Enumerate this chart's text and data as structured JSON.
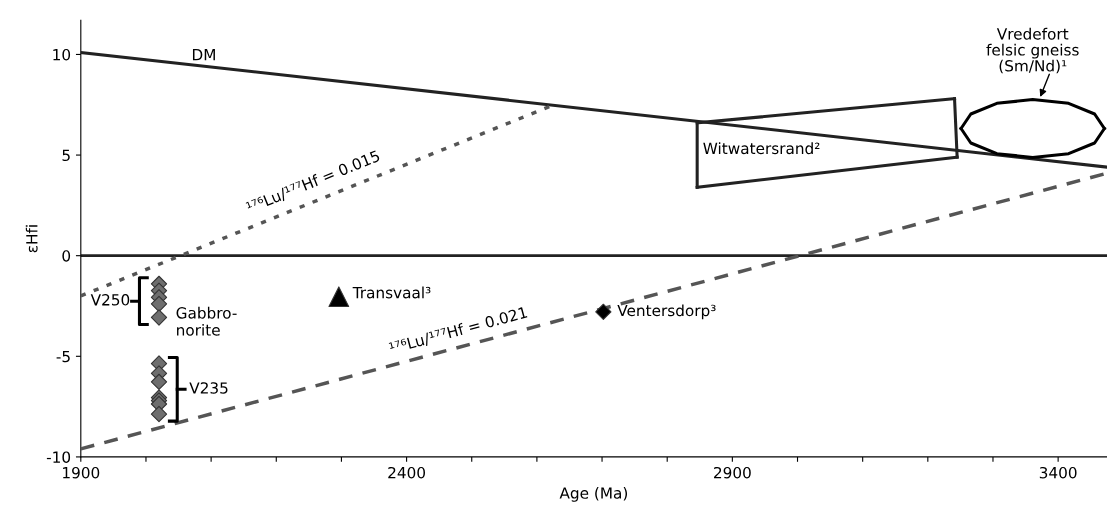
{
  "chart_data": {
    "type": "line",
    "xlabel": "Age (Ma)",
    "ylabel": "εHfi",
    "xlim": [
      1900,
      3475
    ],
    "ylim": [
      -10,
      11.7
    ],
    "xticks": [
      1900,
      {
        "value": 2000,
        "label": null
      },
      {
        "value": 2100,
        "label": null
      },
      {
        "value": 2200,
        "label": null
      },
      {
        "value": 2300,
        "label": null
      },
      2400,
      {
        "value": 2500,
        "label": null
      },
      {
        "value": 2600,
        "label": null
      },
      {
        "value": 2700,
        "label": null
      },
      {
        "value": 2800,
        "label": null
      },
      2900,
      {
        "value": 3000,
        "label": null
      },
      {
        "value": 3100,
        "label": null
      },
      {
        "value": 3200,
        "label": null
      },
      {
        "value": 3300,
        "label": null
      },
      3400
    ],
    "yticks": [
      -10,
      -5,
      0,
      5,
      10
    ],
    "grid": false,
    "ref_lines": [
      {
        "axis": "y",
        "value": 0,
        "color": "#222222",
        "line_style": "solid"
      }
    ],
    "series": [
      {
        "x": [
          1900,
          3475
        ],
        "values": [
          10.1,
          4.4
        ],
        "color": "#222222",
        "line_style": "solid",
        "marker": "none"
      },
      {
        "x": [
          1900,
          2623
        ],
        "values": [
          -2.0,
          7.46
        ],
        "color": "#555555",
        "line_style": "dotted",
        "marker": "none"
      },
      {
        "x": [
          1900,
          3475
        ],
        "values": [
          -9.6,
          4.1
        ],
        "color": "#555555",
        "line_style": "dashed",
        "marker": "none"
      },
      {
        "x": [
          2846,
          3241
        ],
        "values": [
          6.6,
          7.8
        ],
        "color": "#222222",
        "line_style": "solid",
        "marker": "none"
      },
      {
        "x": [
          2846,
          3245
        ],
        "values": [
          3.4,
          4.9
        ],
        "color": "#222222",
        "line_style": "solid",
        "marker": "none"
      },
      {
        "x": [
          2846,
          2846
        ],
        "values": [
          3.4,
          6.6
        ],
        "color": "#222222",
        "line_style": "solid",
        "marker": "none"
      },
      {
        "x": [
          3241,
          3245
        ],
        "values": [
          7.8,
          4.9
        ],
        "color": "#222222",
        "line_style": "solid",
        "marker": "none"
      },
      {
        "x": [
          3251,
          3266,
          3306,
          3361,
          3416,
          3456,
          3471
        ],
        "values": [
          6.32,
          7.04,
          7.57,
          7.76,
          7.57,
          7.04,
          6.32
        ],
        "color": "#000000",
        "line_style": "solid",
        "marker": "none"
      },
      {
        "x": [
          3251,
          3266,
          3306,
          3361,
          3416,
          3456,
          3471
        ],
        "values": [
          6.32,
          5.6,
          5.07,
          4.88,
          5.07,
          5.6,
          6.32
        ],
        "color": "#000000",
        "line_style": "solid",
        "marker": "none"
      },
      {
        "type": "scatter",
        "x": [
          2020,
          2020,
          2020,
          2020,
          2020,
          2020,
          2020,
          2020,
          2020,
          2020,
          2020,
          2020
        ],
        "values": [
          -1.4,
          -1.74,
          -2.07,
          -2.4,
          -3.07,
          -5.36,
          -5.85,
          -6.27,
          -7.05,
          -7.2,
          -7.37,
          -7.87
        ],
        "color": "#6e6e6e",
        "marker": "diamond"
      },
      {
        "type": "scatter",
        "x": [
          2296
        ],
        "values": [
          -2.04
        ],
        "color": "#000000",
        "marker": "triangle"
      },
      {
        "type": "scatter",
        "x": [
          2702
        ],
        "values": [
          -2.79
        ],
        "color": "#000000",
        "marker": "diamond"
      }
    ],
    "annotations": [
      "DM",
      "Witwatersrand²",
      "Vredefort\nfelsic gneiss\n(Sm/Nd)¹",
      "¹⁷⁶Lu/¹⁷⁷Hf = 0.015",
      "¹⁷⁶Lu/¹⁷⁷Hf = 0.021",
      "Transvaal³",
      "Ventersdorp³",
      "Gabbro-\nnorite",
      "V250",
      "V235"
    ]
  }
}
